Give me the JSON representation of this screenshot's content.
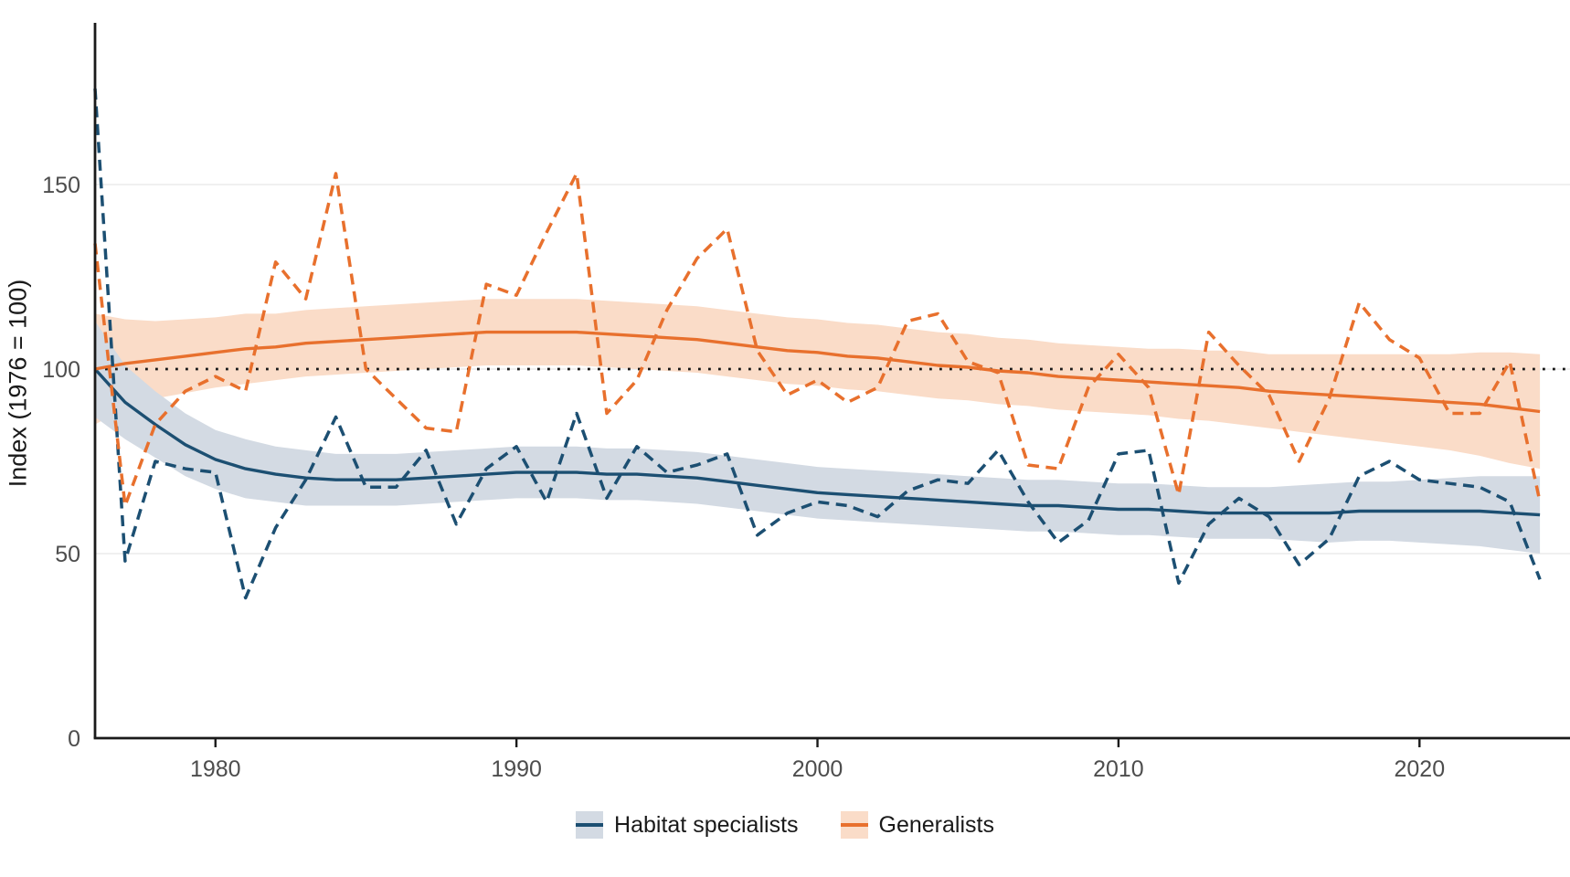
{
  "figure": {
    "y_axis_title": "Index (1976 = 100)"
  },
  "colors": {
    "habitat_line": "#1c4f72",
    "habitat_band": "#d3dae3",
    "generalist_line": "#e8702d",
    "generalist_band": "#fadcc8",
    "reference_line": "#1a1a1a",
    "axis": "#1a1a1a",
    "grid": "#ebebeb",
    "tick_text": "#4d4d4d"
  },
  "legend": {
    "items": [
      {
        "label": "Habitat specialists"
      },
      {
        "label": "Generalists"
      }
    ]
  },
  "chart_data": {
    "type": "line",
    "title": "",
    "xlabel": "",
    "ylabel": "Index (1976 = 100)",
    "xlim": [
      1976,
      2025
    ],
    "ylim": [
      0,
      193
    ],
    "x_ticks": [
      1980,
      1990,
      2000,
      2010,
      2020
    ],
    "y_ticks": [
      0,
      50,
      100,
      150
    ],
    "grid": "horizontal-only",
    "reference_line_y": 100,
    "legend_position": "bottom-center",
    "years": [
      1976,
      1977,
      1978,
      1979,
      1980,
      1981,
      1982,
      1983,
      1984,
      1985,
      1986,
      1987,
      1988,
      1989,
      1990,
      1991,
      1992,
      1993,
      1994,
      1995,
      1996,
      1997,
      1998,
      1999,
      2000,
      2001,
      2002,
      2003,
      2004,
      2005,
      2006,
      2007,
      2008,
      2009,
      2010,
      2011,
      2012,
      2013,
      2014,
      2015,
      2016,
      2017,
      2018,
      2019,
      2020,
      2021,
      2022,
      2023,
      2024
    ],
    "series": [
      {
        "name": "Habitat specialists",
        "style": "dashed-annual-with-smooth-trend-and-ribbon",
        "annual": [
          176,
          48,
          75,
          73,
          72,
          38,
          57,
          70,
          87,
          68,
          68,
          78,
          58,
          73,
          79,
          64,
          88,
          65,
          79,
          72,
          74,
          77,
          55,
          61,
          64,
          63,
          60,
          67,
          70,
          69,
          78,
          64,
          53,
          59,
          77,
          78,
          42,
          58,
          65,
          60,
          47,
          54,
          71,
          75,
          70,
          69,
          68,
          64,
          43
        ],
        "smooth": [
          100,
          91,
          85,
          79.5,
          75.5,
          73,
          71.5,
          70.5,
          70,
          70,
          70,
          70.5,
          71,
          71.5,
          72,
          72,
          72,
          71.5,
          71.5,
          71,
          70.5,
          69.5,
          68.5,
          67.5,
          66.5,
          66,
          65.5,
          65,
          64.5,
          64,
          63.5,
          63,
          63,
          62.5,
          62,
          62,
          61.5,
          61,
          61,
          61,
          61,
          61,
          61.5,
          61.5,
          61.5,
          61.5,
          61.5,
          61,
          60.5
        ],
        "band_low": [
          87,
          81,
          76,
          71,
          67.5,
          65,
          64,
          63,
          63,
          63,
          63,
          63.5,
          64,
          64.5,
          65,
          65,
          65,
          64.5,
          64.5,
          64,
          63.5,
          62.5,
          61.5,
          60.5,
          59.5,
          59,
          58.5,
          58,
          57.5,
          57,
          56.5,
          56,
          56,
          55.5,
          55,
          55,
          54.5,
          54,
          54,
          54,
          53.5,
          53,
          53.5,
          53.5,
          53,
          52.5,
          52,
          51,
          50
        ],
        "band_high": [
          113,
          101,
          94,
          88,
          83.5,
          81,
          79,
          78,
          77,
          77,
          77,
          77.5,
          78,
          78.5,
          79,
          79,
          79,
          78.5,
          78.5,
          78,
          77.5,
          76.5,
          75.5,
          74.5,
          73.5,
          73,
          72.5,
          72,
          71.5,
          71,
          70.5,
          70,
          70,
          69.5,
          69,
          69,
          68.5,
          68,
          68,
          68,
          68.5,
          69,
          69.5,
          69.5,
          70,
          70.5,
          71,
          71,
          71
        ]
      },
      {
        "name": "Generalists",
        "style": "dashed-annual-with-smooth-trend-and-ribbon",
        "annual": [
          134,
          63,
          85,
          94,
          98,
          94,
          129,
          119,
          153,
          100,
          92,
          84,
          83,
          123,
          120,
          137,
          153,
          88,
          97,
          116,
          130,
          138,
          105,
          93,
          97,
          91,
          95,
          113,
          115,
          102,
          99,
          74,
          73,
          95,
          104,
          95,
          66,
          110,
          101,
          93,
          75,
          92,
          118,
          108,
          103,
          88,
          88,
          102,
          64
        ],
        "smooth": [
          100,
          101.5,
          102.5,
          103.5,
          104.5,
          105.5,
          106,
          107,
          107.5,
          108,
          108.5,
          109,
          109.5,
          110,
          110,
          110,
          110,
          109.5,
          109,
          108.5,
          108,
          107,
          106,
          105,
          104.5,
          103.5,
          103,
          102,
          101,
          100.5,
          99.5,
          99,
          98,
          97.5,
          97,
          96.5,
          96,
          95.5,
          95,
          94,
          93.5,
          93,
          92.5,
          92,
          91.5,
          91,
          90.5,
          89.5,
          88.5
        ],
        "band_low": [
          85,
          89.5,
          92,
          93.5,
          95,
          96,
          97,
          98,
          98.5,
          99,
          99.5,
          100,
          100.5,
          101,
          101,
          101,
          101,
          100.5,
          100,
          99.5,
          99,
          98,
          97,
          96,
          95.5,
          94.5,
          94,
          93,
          92,
          91.5,
          90.5,
          90,
          89,
          88.5,
          88,
          87.5,
          86.5,
          86,
          85,
          84,
          83,
          82,
          81,
          80,
          79,
          78,
          76.5,
          74.5,
          73
        ],
        "band_high": [
          115,
          113.5,
          113,
          113.5,
          114,
          115,
          115,
          116,
          116.5,
          117,
          117.5,
          118,
          118.5,
          119,
          119,
          119,
          119,
          118.5,
          118,
          117.5,
          117,
          116,
          115,
          114,
          113.5,
          112.5,
          112,
          111,
          110,
          109.5,
          108.5,
          108,
          107,
          106.5,
          106,
          105.5,
          105.5,
          105,
          105,
          104,
          104,
          104,
          104,
          104,
          104,
          104,
          104.5,
          104.5,
          104
        ]
      }
    ]
  }
}
